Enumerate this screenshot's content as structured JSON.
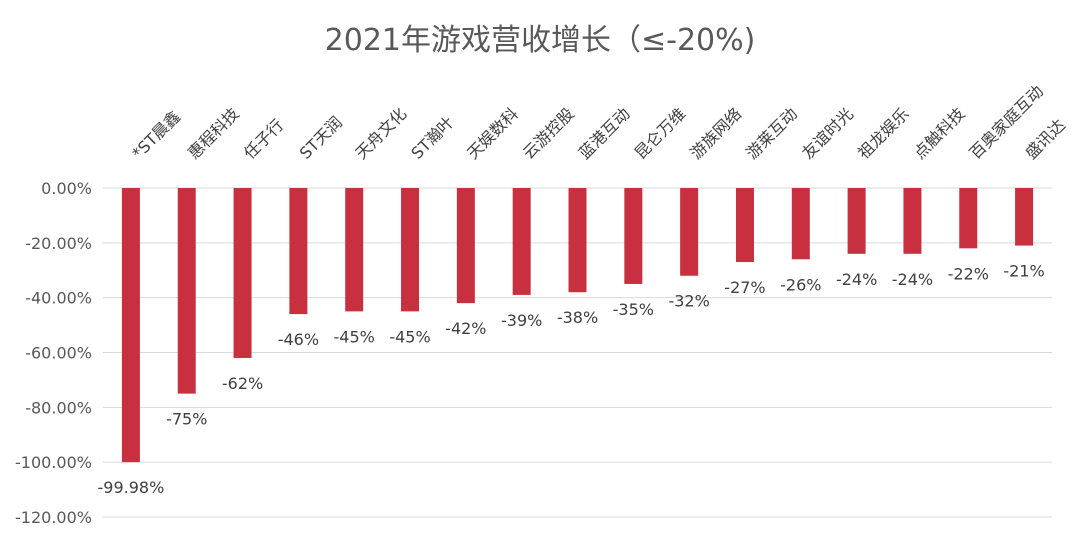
{
  "chart_data": {
    "type": "bar",
    "title": "2021年游戏营收增长（≤-20%)",
    "xlabel": "",
    "ylabel": "",
    "ylim": [
      -120,
      0
    ],
    "yticks": [
      0,
      -20,
      -40,
      -60,
      -80,
      -100,
      -120
    ],
    "ytick_labels": [
      "0.00%",
      "-20.00%",
      "-40.00%",
      "-60.00%",
      "-80.00%",
      "-100.00%",
      "-120.00%"
    ],
    "grid": true,
    "bar_color": "#c9303f",
    "categories": [
      "*ST晨鑫",
      "惠程科技",
      "任子行",
      "ST天润",
      "天舟文化",
      "ST瀚叶",
      "天娱数科",
      "云游控股",
      "蓝港互动",
      "昆仑万维",
      "游族网络",
      "游莱互动",
      "友谊时光",
      "祖龙娱乐",
      "点触科技",
      "百奥家庭互动",
      "盛讯达"
    ],
    "values": [
      -99.98,
      -75,
      -62,
      -46,
      -45,
      -45,
      -42,
      -39,
      -38,
      -35,
      -32,
      -27,
      -26,
      -24,
      -24,
      -22,
      -21
    ],
    "data_labels": [
      "-99.98%",
      "-75%",
      "-62%",
      "-46%",
      "-45%",
      "-45%",
      "-42%",
      "-39%",
      "-38%",
      "-35%",
      "-32%",
      "-27%",
      "-26%",
      "-24%",
      "-24%",
      "-22%",
      "-21%"
    ]
  }
}
